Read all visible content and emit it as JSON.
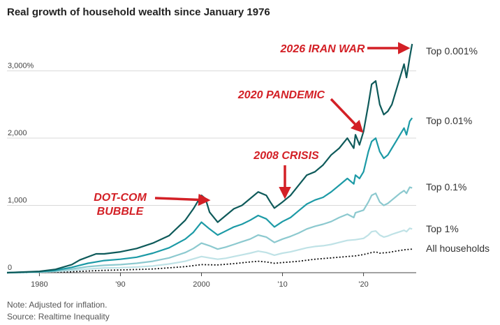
{
  "title": "Real growth of household wealth since January 1976",
  "note": "Note: Adjusted for inflation.",
  "source": "Source: Realtime Inequality",
  "colors": {
    "top_0001": "#0e5a5a",
    "top_001": "#1c9aa6",
    "top_01": "#8cc9cf",
    "top_1": "#bfe2e6",
    "all": "#111111",
    "annotation": "#d32026",
    "grid": "#d9d9d9"
  },
  "chart_data": {
    "type": "line",
    "title": "Real growth of household wealth since January 1976",
    "xlabel": "",
    "ylabel": "",
    "xlim": [
      1976,
      2026.5
    ],
    "ylim": [
      0,
      3400
    ],
    "x_ticks": [
      {
        "value": 1980,
        "label": "1980"
      },
      {
        "value": 1990,
        "label": "'90"
      },
      {
        "value": 2000,
        "label": "2000"
      },
      {
        "value": 2010,
        "label": "'10"
      },
      {
        "value": 2020,
        "label": "'20"
      }
    ],
    "y_ticks": [
      {
        "value": 0,
        "label": "0"
      },
      {
        "value": 1000,
        "label": "1,000"
      },
      {
        "value": 2000,
        "label": "2,000"
      },
      {
        "value": 3000,
        "label": "3,000%"
      }
    ],
    "series": [
      {
        "name": "Top 0.001%",
        "key": "top_0001",
        "dash": false,
        "points": [
          [
            1976,
            0
          ],
          [
            1980,
            20
          ],
          [
            1982,
            50
          ],
          [
            1984,
            120
          ],
          [
            1985,
            190
          ],
          [
            1987,
            280
          ],
          [
            1988,
            280
          ],
          [
            1990,
            310
          ],
          [
            1992,
            360
          ],
          [
            1994,
            440
          ],
          [
            1996,
            550
          ],
          [
            1998,
            780
          ],
          [
            1999,
            950
          ],
          [
            2000,
            1150
          ],
          [
            2000.5,
            1100
          ],
          [
            2001,
            900
          ],
          [
            2002,
            750
          ],
          [
            2003,
            850
          ],
          [
            2004,
            950
          ],
          [
            2005,
            1000
          ],
          [
            2006,
            1100
          ],
          [
            2007,
            1200
          ],
          [
            2008,
            1150
          ],
          [
            2008.5,
            1050
          ],
          [
            2009,
            960
          ],
          [
            2010,
            1050
          ],
          [
            2011,
            1150
          ],
          [
            2012,
            1300
          ],
          [
            2013,
            1450
          ],
          [
            2014,
            1500
          ],
          [
            2015,
            1600
          ],
          [
            2016,
            1750
          ],
          [
            2017,
            1850
          ],
          [
            2018,
            2000
          ],
          [
            2018.8,
            1850
          ],
          [
            2019,
            2050
          ],
          [
            2019.5,
            1900
          ],
          [
            2020,
            2100
          ],
          [
            2020.6,
            2500
          ],
          [
            2021,
            2800
          ],
          [
            2021.5,
            2850
          ],
          [
            2022,
            2500
          ],
          [
            2022.5,
            2350
          ],
          [
            2023,
            2400
          ],
          [
            2023.5,
            2500
          ],
          [
            2024,
            2700
          ],
          [
            2024.5,
            2900
          ],
          [
            2025,
            3100
          ],
          [
            2025.3,
            2900
          ],
          [
            2025.7,
            3200
          ],
          [
            2026,
            3400
          ]
        ]
      },
      {
        "name": "Top 0.01%",
        "key": "top_001",
        "dash": false,
        "points": [
          [
            1976,
            0
          ],
          [
            1980,
            15
          ],
          [
            1982,
            35
          ],
          [
            1984,
            80
          ],
          [
            1986,
            140
          ],
          [
            1988,
            180
          ],
          [
            1990,
            200
          ],
          [
            1992,
            230
          ],
          [
            1994,
            290
          ],
          [
            1996,
            370
          ],
          [
            1998,
            500
          ],
          [
            1999,
            600
          ],
          [
            2000,
            750
          ],
          [
            2001,
            650
          ],
          [
            2002,
            560
          ],
          [
            2003,
            620
          ],
          [
            2004,
            680
          ],
          [
            2005,
            720
          ],
          [
            2006,
            780
          ],
          [
            2007,
            850
          ],
          [
            2008,
            800
          ],
          [
            2009,
            680
          ],
          [
            2010,
            760
          ],
          [
            2011,
            820
          ],
          [
            2012,
            920
          ],
          [
            2013,
            1020
          ],
          [
            2014,
            1080
          ],
          [
            2015,
            1120
          ],
          [
            2016,
            1200
          ],
          [
            2017,
            1300
          ],
          [
            2018,
            1400
          ],
          [
            2018.8,
            1320
          ],
          [
            2019,
            1450
          ],
          [
            2019.5,
            1400
          ],
          [
            2020,
            1500
          ],
          [
            2020.6,
            1800
          ],
          [
            2021,
            1950
          ],
          [
            2021.5,
            2000
          ],
          [
            2022,
            1800
          ],
          [
            2022.5,
            1700
          ],
          [
            2023,
            1750
          ],
          [
            2023.5,
            1850
          ],
          [
            2024,
            1950
          ],
          [
            2024.5,
            2050
          ],
          [
            2025,
            2150
          ],
          [
            2025.3,
            2050
          ],
          [
            2025.7,
            2250
          ],
          [
            2026,
            2300
          ]
        ]
      },
      {
        "name": "Top 0.1%",
        "key": "top_01",
        "dash": false,
        "points": [
          [
            1976,
            0
          ],
          [
            1980,
            10
          ],
          [
            1982,
            25
          ],
          [
            1984,
            55
          ],
          [
            1986,
            90
          ],
          [
            1988,
            110
          ],
          [
            1990,
            120
          ],
          [
            1992,
            140
          ],
          [
            1994,
            170
          ],
          [
            1996,
            220
          ],
          [
            1998,
            300
          ],
          [
            1999,
            360
          ],
          [
            2000,
            440
          ],
          [
            2001,
            400
          ],
          [
            2002,
            350
          ],
          [
            2003,
            380
          ],
          [
            2004,
            420
          ],
          [
            2005,
            460
          ],
          [
            2006,
            500
          ],
          [
            2007,
            560
          ],
          [
            2008,
            530
          ],
          [
            2009,
            450
          ],
          [
            2010,
            500
          ],
          [
            2011,
            540
          ],
          [
            2012,
            590
          ],
          [
            2013,
            650
          ],
          [
            2014,
            690
          ],
          [
            2015,
            720
          ],
          [
            2016,
            760
          ],
          [
            2017,
            820
          ],
          [
            2018,
            870
          ],
          [
            2018.8,
            820
          ],
          [
            2019,
            890
          ],
          [
            2020,
            930
          ],
          [
            2020.6,
            1050
          ],
          [
            2021,
            1150
          ],
          [
            2021.5,
            1180
          ],
          [
            2022,
            1050
          ],
          [
            2022.5,
            1000
          ],
          [
            2023,
            1030
          ],
          [
            2023.5,
            1080
          ],
          [
            2024,
            1130
          ],
          [
            2024.5,
            1180
          ],
          [
            2025,
            1220
          ],
          [
            2025.3,
            1180
          ],
          [
            2025.7,
            1270
          ],
          [
            2026,
            1260
          ]
        ]
      },
      {
        "name": "Top 1%",
        "key": "top_1",
        "dash": false,
        "points": [
          [
            1976,
            0
          ],
          [
            1980,
            8
          ],
          [
            1982,
            18
          ],
          [
            1984,
            35
          ],
          [
            1986,
            55
          ],
          [
            1988,
            70
          ],
          [
            1990,
            75
          ],
          [
            1992,
            85
          ],
          [
            1994,
            100
          ],
          [
            1996,
            130
          ],
          [
            1998,
            170
          ],
          [
            2000,
            240
          ],
          [
            2001,
            220
          ],
          [
            2002,
            200
          ],
          [
            2003,
            215
          ],
          [
            2004,
            240
          ],
          [
            2005,
            265
          ],
          [
            2006,
            290
          ],
          [
            2007,
            320
          ],
          [
            2008,
            300
          ],
          [
            2009,
            260
          ],
          [
            2010,
            290
          ],
          [
            2011,
            310
          ],
          [
            2012,
            340
          ],
          [
            2013,
            370
          ],
          [
            2014,
            390
          ],
          [
            2015,
            400
          ],
          [
            2016,
            420
          ],
          [
            2017,
            450
          ],
          [
            2018,
            480
          ],
          [
            2019,
            490
          ],
          [
            2020,
            510
          ],
          [
            2020.6,
            560
          ],
          [
            2021,
            610
          ],
          [
            2021.5,
            620
          ],
          [
            2022,
            560
          ],
          [
            2022.5,
            530
          ],
          [
            2023,
            545
          ],
          [
            2023.5,
            570
          ],
          [
            2024,
            590
          ],
          [
            2024.5,
            610
          ],
          [
            2025,
            630
          ],
          [
            2025.3,
            610
          ],
          [
            2025.7,
            660
          ],
          [
            2026,
            650
          ]
        ]
      },
      {
        "name": "All households",
        "key": "all",
        "dash": true,
        "points": [
          [
            1976,
            0
          ],
          [
            1980,
            5
          ],
          [
            1984,
            15
          ],
          [
            1988,
            35
          ],
          [
            1990,
            40
          ],
          [
            1994,
            55
          ],
          [
            1998,
            90
          ],
          [
            2000,
            120
          ],
          [
            2002,
            115
          ],
          [
            2004,
            135
          ],
          [
            2006,
            160
          ],
          [
            2007,
            170
          ],
          [
            2008,
            160
          ],
          [
            2009,
            140
          ],
          [
            2010,
            150
          ],
          [
            2012,
            170
          ],
          [
            2014,
            200
          ],
          [
            2016,
            220
          ],
          [
            2018,
            240
          ],
          [
            2019,
            250
          ],
          [
            2020,
            270
          ],
          [
            2021,
            300
          ],
          [
            2021.5,
            310
          ],
          [
            2022,
            290
          ],
          [
            2023,
            300
          ],
          [
            2024,
            320
          ],
          [
            2025,
            340
          ],
          [
            2026,
            350
          ]
        ]
      }
    ],
    "end_labels": [
      {
        "key": "top_0001",
        "label": "Top 0.001%",
        "value": 3400
      },
      {
        "key": "top_001",
        "label": "Top 0.01%",
        "value": 2300
      },
      {
        "key": "top_01",
        "label": "Top 0.1%",
        "value": 1280
      },
      {
        "key": "top_1",
        "label": "Top 1%",
        "value": 660
      },
      {
        "key": "all",
        "label": "All households",
        "value": 350
      }
    ],
    "annotations": [
      {
        "id": "dotcom",
        "lines": [
          "DOT-COM",
          "BUBBLE"
        ],
        "x": 2000,
        "y": 1150
      },
      {
        "id": "crisis2008",
        "lines": [
          "2008 CRISIS"
        ],
        "x": 2008.8,
        "y": 1060
      },
      {
        "id": "pandemic",
        "lines": [
          "2020 PANDEMIC"
        ],
        "x": 2020.1,
        "y": 2050
      },
      {
        "id": "iranwar",
        "lines": [
          "2026 IRAN WAR"
        ],
        "x": 2026,
        "y": 3400
      }
    ]
  }
}
